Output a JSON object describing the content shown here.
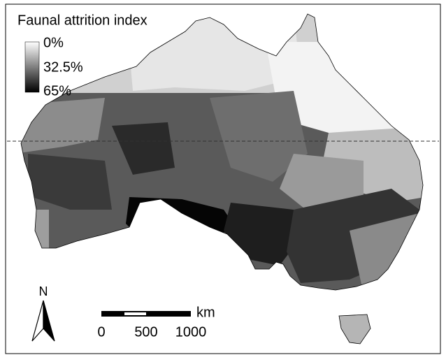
{
  "title": "Faunal attrition index",
  "legend": {
    "labels": [
      "0%",
      "32.5%",
      "65%"
    ]
  },
  "north_arrow": {
    "label": "N"
  },
  "scale_bar": {
    "unit": "km",
    "labels": [
      "0",
      "500",
      "1000"
    ]
  }
}
